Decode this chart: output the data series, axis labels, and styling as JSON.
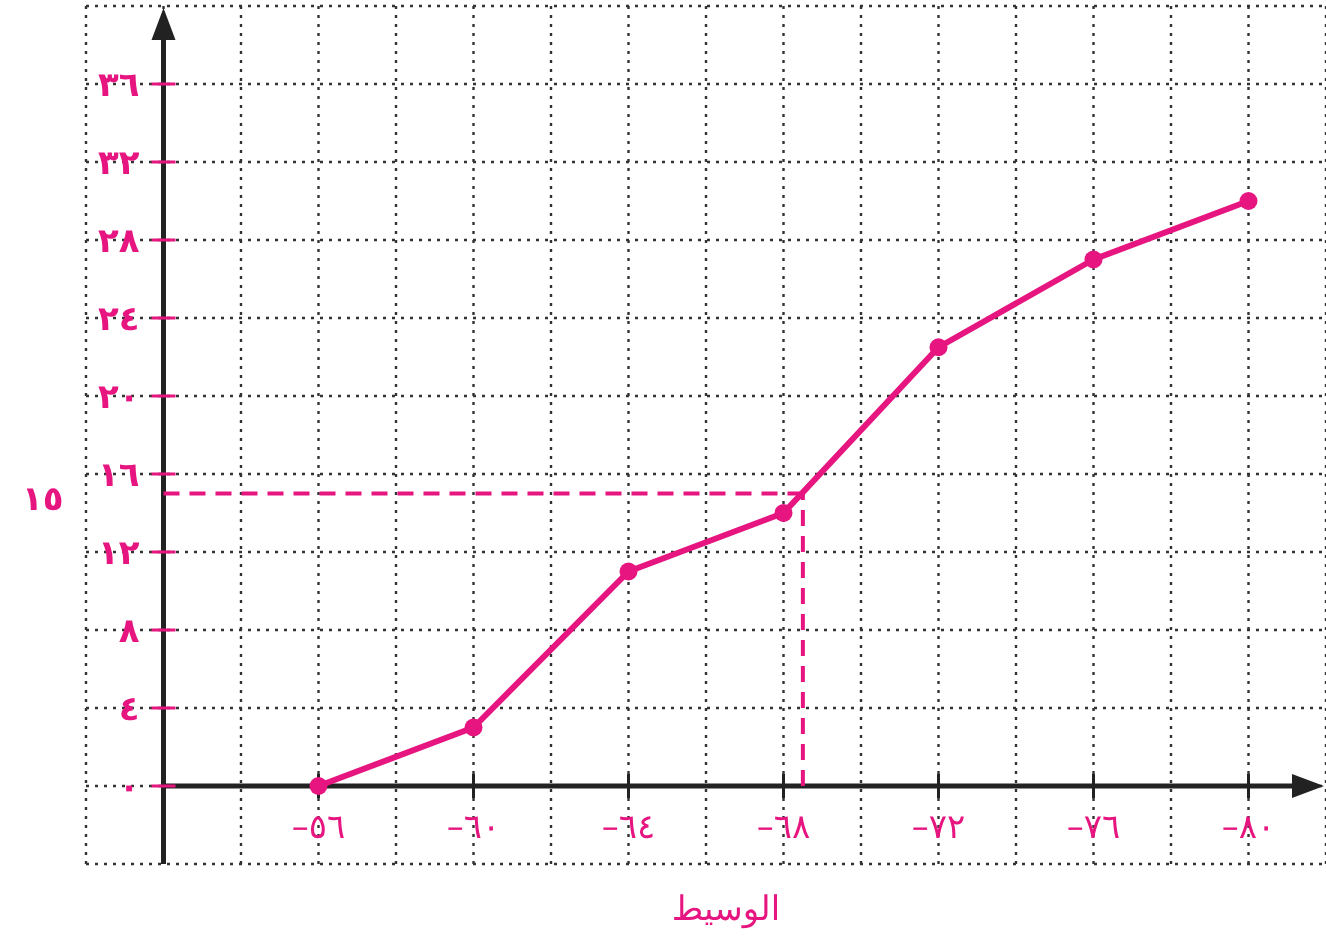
{
  "chart_data": {
    "type": "line",
    "xlabel": "الوسيط",
    "x": [
      56,
      60,
      64,
      68,
      72,
      76,
      80
    ],
    "series": [
      {
        "color": "#e6157f",
        "values": [
          0,
          3,
          11,
          14,
          22.5,
          27,
          30
        ]
      }
    ],
    "marker": "circle",
    "line_style": "solid",
    "xlim": [
      50,
      82
    ],
    "ylim": [
      -4,
      40
    ],
    "xticks": [
      {
        "value": 52,
        "label": null
      },
      {
        "value": 54,
        "label": null
      },
      {
        "value": 56,
        "label": "٥٦–"
      },
      {
        "value": 58,
        "label": null
      },
      {
        "value": 60,
        "label": "٦٠–"
      },
      {
        "value": 62,
        "label": null
      },
      {
        "value": 64,
        "label": "٦٤–"
      },
      {
        "value": 66,
        "label": null
      },
      {
        "value": 68,
        "label": "٦٨–"
      },
      {
        "value": 70,
        "label": null
      },
      {
        "value": 72,
        "label": "٧٢–"
      },
      {
        "value": 74,
        "label": null
      },
      {
        "value": 76,
        "label": "٧٦–"
      },
      {
        "value": 78,
        "label": null
      },
      {
        "value": 80,
        "label": "٨٠–"
      }
    ],
    "yticks": [
      {
        "value": 0,
        "label": "٠"
      },
      {
        "value": 4,
        "label": "٤"
      },
      {
        "value": 8,
        "label": "٨"
      },
      {
        "value": 12,
        "label": "١٢"
      },
      {
        "value": 16,
        "label": "١٦"
      },
      {
        "value": 20,
        "label": "٢٠"
      },
      {
        "value": 24,
        "label": "٢٤"
      },
      {
        "value": 28,
        "label": "٢٨"
      },
      {
        "value": 32,
        "label": "٣٢"
      },
      {
        "value": 36,
        "label": "٣٦"
      }
    ],
    "grid": true,
    "ref_lines": [
      {
        "axis": "y",
        "value": 15,
        "label": "١٥",
        "color": "#e6157f",
        "line_style": "dashed"
      },
      {
        "axis": "x",
        "value": 68.5,
        "label": null,
        "color": "#e6157f",
        "line_style": "dashed"
      }
    ]
  }
}
